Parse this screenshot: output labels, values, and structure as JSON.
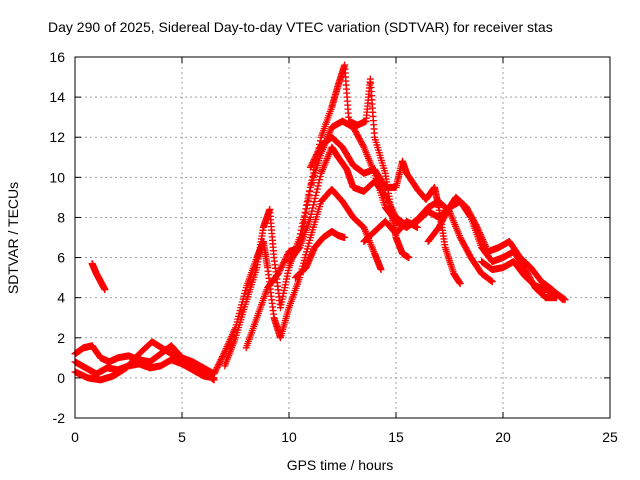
{
  "chart_data": {
    "type": "scatter",
    "title": "Day 290 of 2025, Sidereal Day-to-day VTEC variation (SDTVAR) for receiver stas",
    "xlabel": "GPS time / hours",
    "ylabel": "SDTVAR / TECUs",
    "xlim": [
      0,
      25
    ],
    "ylim": [
      -2,
      16
    ],
    "xticks": [
      0,
      5,
      10,
      15,
      20,
      25
    ],
    "yticks": [
      -2,
      0,
      2,
      4,
      6,
      8,
      10,
      12,
      14,
      16
    ],
    "grid": true,
    "marker": "plus",
    "series": [
      {
        "name": "SDTVAR",
        "color": "#ff0000",
        "tracks": [
          [
            [
              0.0,
              1.2
            ],
            [
              0.4,
              1.5
            ],
            [
              0.8,
              1.6
            ],
            [
              1.2,
              1.0
            ],
            [
              1.6,
              0.8
            ],
            [
              2.0,
              1.0
            ],
            [
              2.5,
              1.1
            ],
            [
              3.0,
              0.9
            ],
            [
              3.5,
              0.8
            ],
            [
              4.0,
              1.2
            ],
            [
              4.5,
              1.6
            ],
            [
              5.0,
              1.0
            ],
            [
              5.5,
              0.8
            ],
            [
              6.0,
              0.5
            ],
            [
              6.5,
              0.2
            ]
          ],
          [
            [
              0.0,
              0.8
            ],
            [
              0.5,
              0.5
            ],
            [
              1.0,
              0.2
            ],
            [
              1.5,
              0.5
            ],
            [
              2.0,
              0.4
            ],
            [
              2.5,
              0.6
            ],
            [
              3.0,
              0.7
            ],
            [
              3.5,
              0.5
            ],
            [
              4.0,
              0.6
            ],
            [
              4.5,
              0.9
            ],
            [
              5.0,
              0.7
            ],
            [
              5.5,
              0.4
            ],
            [
              6.0,
              0.1
            ],
            [
              6.5,
              0.0
            ]
          ],
          [
            [
              0.0,
              0.3
            ],
            [
              0.6,
              0.0
            ],
            [
              1.2,
              -0.1
            ],
            [
              1.8,
              0.1
            ],
            [
              2.4,
              0.5
            ],
            [
              3.0,
              1.2
            ],
            [
              3.6,
              1.8
            ],
            [
              4.2,
              1.4
            ],
            [
              4.8,
              1.0
            ],
            [
              5.4,
              0.6
            ],
            [
              6.0,
              0.3
            ],
            [
              6.5,
              -0.1
            ]
          ],
          [
            [
              0.8,
              5.7
            ],
            [
              1.0,
              5.2
            ],
            [
              1.2,
              4.8
            ],
            [
              1.4,
              4.4
            ]
          ],
          [
            [
              6.5,
              0.2
            ],
            [
              7.0,
              1.3
            ],
            [
              7.5,
              2.5
            ],
            [
              8.0,
              4.5
            ],
            [
              8.5,
              6.0
            ],
            [
              8.8,
              6.8
            ],
            [
              9.0,
              5.5
            ],
            [
              9.3,
              3.0
            ],
            [
              9.6,
              2.0
            ],
            [
              10.0,
              3.5
            ],
            [
              10.5,
              5.0
            ],
            [
              11.0,
              7.0
            ],
            [
              11.5,
              8.8
            ],
            [
              12.0,
              9.4
            ],
            [
              12.5,
              8.8
            ],
            [
              13.0,
              8.0
            ],
            [
              13.5,
              7.5
            ],
            [
              14.0,
              6.2
            ],
            [
              14.3,
              5.4
            ]
          ],
          [
            [
              7.0,
              0.6
            ],
            [
              7.5,
              2.0
            ],
            [
              8.0,
              3.8
            ],
            [
              8.5,
              5.5
            ],
            [
              8.8,
              7.5
            ],
            [
              9.1,
              8.4
            ],
            [
              9.3,
              6.0
            ],
            [
              9.6,
              3.5
            ],
            [
              10.0,
              5.5
            ],
            [
              10.5,
              7.0
            ],
            [
              11.0,
              9.5
            ],
            [
              11.5,
              11.2
            ],
            [
              12.0,
              12.5
            ],
            [
              12.5,
              12.8
            ],
            [
              13.0,
              12.5
            ],
            [
              13.5,
              11.5
            ],
            [
              14.0,
              10.2
            ],
            [
              14.5,
              8.5
            ],
            [
              15.0,
              7.8
            ],
            [
              15.5,
              7.5
            ],
            [
              16.0,
              7.9
            ],
            [
              16.5,
              8.5
            ],
            [
              17.0,
              8.8
            ],
            [
              17.5,
              8.3
            ],
            [
              18.0,
              7.0
            ],
            [
              18.5,
              6.0
            ],
            [
              19.0,
              5.2
            ],
            [
              19.5,
              4.8
            ]
          ],
          [
            [
              8.0,
              1.5
            ],
            [
              8.5,
              3.0
            ],
            [
              9.0,
              4.5
            ],
            [
              9.5,
              5.2
            ],
            [
              10.0,
              6.3
            ],
            [
              10.5,
              6.5
            ],
            [
              11.0,
              8.0
            ],
            [
              11.5,
              10.2
            ],
            [
              12.0,
              11.5
            ],
            [
              12.3,
              11.0
            ],
            [
              12.7,
              10.4
            ],
            [
              13.0,
              9.5
            ],
            [
              13.5,
              9.3
            ],
            [
              14.0,
              9.8
            ],
            [
              14.5,
              9.1
            ],
            [
              15.0,
              8.0
            ],
            [
              15.5,
              7.6
            ],
            [
              16.0,
              7.8
            ],
            [
              16.5,
              8.3
            ],
            [
              17.0,
              8.0
            ],
            [
              17.5,
              8.5
            ],
            [
              18.0,
              8.8
            ],
            [
              18.5,
              8.0
            ],
            [
              19.0,
              6.5
            ],
            [
              19.5,
              5.8
            ],
            [
              20.0,
              6.0
            ],
            [
              20.5,
              6.3
            ],
            [
              21.0,
              5.5
            ],
            [
              21.5,
              4.5
            ],
            [
              22.0,
              4.0
            ],
            [
              22.5,
              4.0
            ]
          ],
          [
            [
              10.0,
              5.8
            ],
            [
              10.5,
              6.5
            ],
            [
              11.0,
              9.5
            ],
            [
              11.5,
              12.0
            ],
            [
              12.0,
              13.5
            ],
            [
              12.3,
              14.6
            ],
            [
              12.6,
              15.6
            ],
            [
              12.8,
              12.8
            ],
            [
              13.2,
              12.6
            ],
            [
              13.6,
              12.8
            ],
            [
              13.8,
              14.9
            ],
            [
              14.0,
              12.0
            ],
            [
              14.5,
              10.2
            ],
            [
              14.8,
              8.2
            ],
            [
              15.0,
              7.0
            ],
            [
              15.3,
              6.2
            ],
            [
              15.6,
              6.0
            ]
          ],
          [
            [
              10.3,
              5.0
            ],
            [
              10.8,
              5.5
            ],
            [
              11.2,
              6.5
            ],
            [
              11.6,
              7.0
            ],
            [
              12.0,
              7.3
            ],
            [
              12.3,
              7.1
            ],
            [
              12.6,
              7.0
            ]
          ],
          [
            [
              11.0,
              10.5
            ],
            [
              11.5,
              11.6
            ],
            [
              12.0,
              12.0
            ],
            [
              12.5,
              11.5
            ],
            [
              13.0,
              10.6
            ],
            [
              13.5,
              10.2
            ],
            [
              14.0,
              10.4
            ],
            [
              14.5,
              9.5
            ],
            [
              15.0,
              9.5
            ],
            [
              15.3,
              10.8
            ],
            [
              15.5,
              10.2
            ],
            [
              16.0,
              9.4
            ],
            [
              16.4,
              8.9
            ],
            [
              16.8,
              9.5
            ],
            [
              17.0,
              8.5
            ],
            [
              17.3,
              6.5
            ],
            [
              17.7,
              5.2
            ],
            [
              18.0,
              4.7
            ]
          ],
          [
            [
              16.5,
              6.8
            ],
            [
              17.0,
              7.5
            ],
            [
              17.5,
              8.5
            ],
            [
              17.8,
              9.0
            ],
            [
              18.3,
              8.5
            ],
            [
              18.8,
              7.5
            ],
            [
              19.3,
              6.3
            ],
            [
              19.8,
              6.5
            ],
            [
              20.3,
              6.8
            ],
            [
              20.8,
              6.0
            ],
            [
              21.3,
              5.5
            ],
            [
              21.8,
              4.8
            ],
            [
              22.3,
              4.4
            ],
            [
              22.8,
              3.9
            ]
          ],
          [
            [
              13.5,
              6.8
            ],
            [
              14.0,
              7.3
            ],
            [
              14.5,
              7.8
            ],
            [
              15.0,
              7.2
            ],
            [
              15.5,
              7.8
            ],
            [
              16.0,
              7.5
            ]
          ],
          [
            [
              19.0,
              5.8
            ],
            [
              19.5,
              5.4
            ],
            [
              20.0,
              5.5
            ],
            [
              20.5,
              5.8
            ],
            [
              21.0,
              5.1
            ],
            [
              21.5,
              4.6
            ],
            [
              22.0,
              4.4
            ],
            [
              22.5,
              4.2
            ],
            [
              22.9,
              3.9
            ]
          ]
        ]
      }
    ]
  }
}
